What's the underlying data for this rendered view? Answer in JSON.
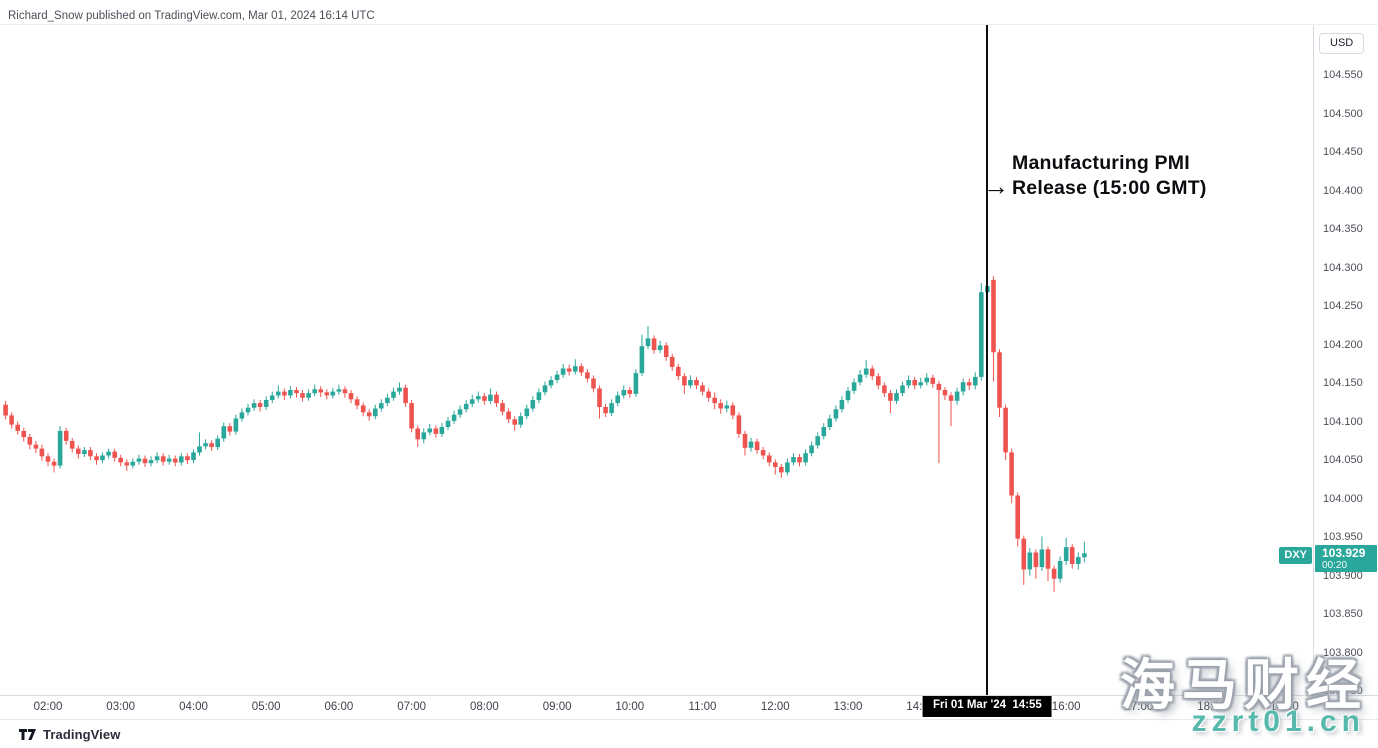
{
  "header": {
    "attribution": "Richard_Snow published on TradingView.com, Mar 01, 2024 16:14 UTC"
  },
  "annotation": {
    "arrow": "→",
    "line1": "Manufacturing PMI",
    "line2": "Release (15:00 GMT)"
  },
  "price_axis": {
    "currency_button": "USD"
  },
  "symbol_label": {
    "symbol": "DXY",
    "price": "103.929",
    "countdown": "00:20"
  },
  "time_axis": {
    "event_badge": "Fri 01 Mar '24  14:55"
  },
  "footer": {
    "brand": "TradingView"
  },
  "watermark": {
    "line1": "海马财经",
    "line2": "zzrt01.cn",
    "color": "#57b9ac"
  },
  "colors": {
    "up": "#2aa79b",
    "down": "#ef5350",
    "event_line": "#0c0d10"
  },
  "chart_data": {
    "type": "candlestick",
    "symbol": "DXY",
    "currency": "USD",
    "interval": "5m",
    "title": "DXY with Manufacturing PMI Release (15:00 GMT) event line at 14:55",
    "start_time": "01:25",
    "interval_minutes": 5,
    "event_time": "14:55",
    "event_annotation": "Manufacturing PMI Release (15:00 GMT)",
    "last_price": 103.929,
    "grid": false,
    "price_at_top": 104.615,
    "price_at_bottom": 103.745,
    "y_ticks": [
      "104.550",
      "104.500",
      "104.450",
      "104.400",
      "104.350",
      "104.300",
      "104.250",
      "104.200",
      "104.150",
      "104.100",
      "104.050",
      "104.000",
      "103.950",
      "103.900",
      "103.850",
      "103.800",
      "103.750"
    ],
    "x_ticks": [
      "02:00",
      "03:00",
      "04:00",
      "05:00",
      "06:00",
      "07:00",
      "08:00",
      "09:00",
      "10:00",
      "11:00",
      "12:00",
      "13:00",
      "14:00",
      "16:00",
      "17:00",
      "18:00",
      "19:00"
    ],
    "candles": [
      [
        104.122,
        104.127,
        104.103,
        104.108
      ],
      [
        104.108,
        104.112,
        104.091,
        104.096
      ],
      [
        104.096,
        104.1,
        104.083,
        104.088
      ],
      [
        104.088,
        104.092,
        104.074,
        104.08
      ],
      [
        104.08,
        104.084,
        104.064,
        104.07
      ],
      [
        104.07,
        104.075,
        104.059,
        104.065
      ],
      [
        104.065,
        104.07,
        104.049,
        104.055
      ],
      [
        104.055,
        104.059,
        104.042,
        104.048
      ],
      [
        104.048,
        104.052,
        104.034,
        104.043
      ],
      [
        104.043,
        104.094,
        104.039,
        104.088
      ],
      [
        104.088,
        104.092,
        104.07,
        104.075
      ],
      [
        104.075,
        104.079,
        104.06,
        104.065
      ],
      [
        104.065,
        104.069,
        104.052,
        104.058
      ],
      [
        104.058,
        104.067,
        104.054,
        104.063
      ],
      [
        104.063,
        104.067,
        104.05,
        104.055
      ],
      [
        104.055,
        104.059,
        104.044,
        104.05
      ],
      [
        104.05,
        104.06,
        104.046,
        104.056
      ],
      [
        104.056,
        104.065,
        104.052,
        104.061
      ],
      [
        104.061,
        104.065,
        104.048,
        104.053
      ],
      [
        104.053,
        104.057,
        104.042,
        104.047
      ],
      [
        104.047,
        104.051,
        104.036,
        104.043
      ],
      [
        104.043,
        104.052,
        104.039,
        104.048
      ],
      [
        104.048,
        104.057,
        104.044,
        104.052
      ],
      [
        104.052,
        104.056,
        104.041,
        104.046
      ],
      [
        104.046,
        104.055,
        104.042,
        104.05
      ],
      [
        104.05,
        104.06,
        104.046,
        104.055
      ],
      [
        104.055,
        104.059,
        104.043,
        104.048
      ],
      [
        104.048,
        104.057,
        104.044,
        104.052
      ],
      [
        104.052,
        104.056,
        104.042,
        104.047
      ],
      [
        104.047,
        104.059,
        104.043,
        104.055
      ],
      [
        104.055,
        104.059,
        104.045,
        104.05
      ],
      [
        104.05,
        104.064,
        104.046,
        104.06
      ],
      [
        104.06,
        104.086,
        104.056,
        104.068
      ],
      [
        104.068,
        104.077,
        104.064,
        104.072
      ],
      [
        104.072,
        104.076,
        104.062,
        104.067
      ],
      [
        104.067,
        104.082,
        104.063,
        104.078
      ],
      [
        104.078,
        104.099,
        104.074,
        104.094
      ],
      [
        104.094,
        104.098,
        104.082,
        104.087
      ],
      [
        104.087,
        104.109,
        104.083,
        104.104
      ],
      [
        104.104,
        104.117,
        104.1,
        104.112
      ],
      [
        104.112,
        104.123,
        104.108,
        104.118
      ],
      [
        104.118,
        104.129,
        104.114,
        104.124
      ],
      [
        104.124,
        104.128,
        104.113,
        104.119
      ],
      [
        104.119,
        104.133,
        104.115,
        104.128
      ],
      [
        104.128,
        104.139,
        104.124,
        104.134
      ],
      [
        104.134,
        104.147,
        104.13,
        104.139
      ],
      [
        104.139,
        104.143,
        104.128,
        104.134
      ],
      [
        104.134,
        104.146,
        104.13,
        104.141
      ],
      [
        104.141,
        104.145,
        104.131,
        104.137
      ],
      [
        104.137,
        104.141,
        104.126,
        104.131
      ],
      [
        104.131,
        104.142,
        104.127,
        104.137
      ],
      [
        104.137,
        104.148,
        104.133,
        104.142
      ],
      [
        104.142,
        104.146,
        104.132,
        104.138
      ],
      [
        104.138,
        104.142,
        104.129,
        104.134
      ],
      [
        104.134,
        104.144,
        104.13,
        104.139
      ],
      [
        104.139,
        104.148,
        104.135,
        104.142
      ],
      [
        104.142,
        104.146,
        104.131,
        104.137
      ],
      [
        104.137,
        104.141,
        104.124,
        104.129
      ],
      [
        104.129,
        104.133,
        104.116,
        104.121
      ],
      [
        104.121,
        104.125,
        104.107,
        104.112
      ],
      [
        104.112,
        104.116,
        104.101,
        104.107
      ],
      [
        104.107,
        104.122,
        104.103,
        104.117
      ],
      [
        104.117,
        104.129,
        104.113,
        104.124
      ],
      [
        104.124,
        104.136,
        104.12,
        104.131
      ],
      [
        104.131,
        104.144,
        104.127,
        104.139
      ],
      [
        104.139,
        104.151,
        104.135,
        104.144
      ],
      [
        104.144,
        104.148,
        104.119,
        104.124
      ],
      [
        104.124,
        104.128,
        104.086,
        104.091
      ],
      [
        104.091,
        104.095,
        104.067,
        104.077
      ],
      [
        104.077,
        104.091,
        104.072,
        104.086
      ],
      [
        104.086,
        104.097,
        104.082,
        104.091
      ],
      [
        104.091,
        104.095,
        104.079,
        104.084
      ],
      [
        104.084,
        104.098,
        104.08,
        104.093
      ],
      [
        104.093,
        104.106,
        104.089,
        104.101
      ],
      [
        104.101,
        104.114,
        104.097,
        104.109
      ],
      [
        104.109,
        104.121,
        104.105,
        104.116
      ],
      [
        104.116,
        104.128,
        104.112,
        104.123
      ],
      [
        104.123,
        104.135,
        104.119,
        104.129
      ],
      [
        104.129,
        104.139,
        104.125,
        104.133
      ],
      [
        104.133,
        104.137,
        104.122,
        104.127
      ],
      [
        104.127,
        104.143,
        104.123,
        104.135
      ],
      [
        104.135,
        104.139,
        104.119,
        104.124
      ],
      [
        104.124,
        104.128,
        104.108,
        104.113
      ],
      [
        104.113,
        104.117,
        104.098,
        104.103
      ],
      [
        104.103,
        104.107,
        104.088,
        104.096
      ],
      [
        104.096,
        104.112,
        104.092,
        104.107
      ],
      [
        104.107,
        104.122,
        104.103,
        104.117
      ],
      [
        104.117,
        104.133,
        104.113,
        104.128
      ],
      [
        104.128,
        104.143,
        104.124,
        104.138
      ],
      [
        104.138,
        104.152,
        104.134,
        104.147
      ],
      [
        104.147,
        104.159,
        104.143,
        104.154
      ],
      [
        104.154,
        104.166,
        104.15,
        104.161
      ],
      [
        104.161,
        104.175,
        104.157,
        104.169
      ],
      [
        104.169,
        104.174,
        104.16,
        104.165
      ],
      [
        104.165,
        104.181,
        104.161,
        104.172
      ],
      [
        104.172,
        104.176,
        104.159,
        104.164
      ],
      [
        104.164,
        104.168,
        104.151,
        104.156
      ],
      [
        104.156,
        104.16,
        104.138,
        104.143
      ],
      [
        104.143,
        104.147,
        104.104,
        104.119
      ],
      [
        104.119,
        104.123,
        104.106,
        104.111
      ],
      [
        104.111,
        104.129,
        104.107,
        104.124
      ],
      [
        104.124,
        104.139,
        104.12,
        104.134
      ],
      [
        104.134,
        104.147,
        104.13,
        104.141
      ],
      [
        104.141,
        104.145,
        104.131,
        104.136
      ],
      [
        104.136,
        104.168,
        104.132,
        104.163
      ],
      [
        104.163,
        104.213,
        104.159,
        104.198
      ],
      [
        104.198,
        104.224,
        104.194,
        104.208
      ],
      [
        104.208,
        104.212,
        104.188,
        104.193
      ],
      [
        104.193,
        104.205,
        104.189,
        104.199
      ],
      [
        104.199,
        104.203,
        104.179,
        104.184
      ],
      [
        104.184,
        104.188,
        104.166,
        104.171
      ],
      [
        104.171,
        104.175,
        104.154,
        104.159
      ],
      [
        104.159,
        104.163,
        104.136,
        104.147
      ],
      [
        104.147,
        104.16,
        104.143,
        104.154
      ],
      [
        104.154,
        104.158,
        104.142,
        104.147
      ],
      [
        104.147,
        104.151,
        104.134,
        104.139
      ],
      [
        104.139,
        104.143,
        104.126,
        104.131
      ],
      [
        104.131,
        104.138,
        104.116,
        104.124
      ],
      [
        104.124,
        104.129,
        104.11,
        104.117
      ],
      [
        104.117,
        104.127,
        104.112,
        104.121
      ],
      [
        104.121,
        104.125,
        104.103,
        104.108
      ],
      [
        104.108,
        104.112,
        104.079,
        104.084
      ],
      [
        104.084,
        104.088,
        104.056,
        104.066
      ],
      [
        104.066,
        104.079,
        104.061,
        104.074
      ],
      [
        104.074,
        104.078,
        104.058,
        104.063
      ],
      [
        104.063,
        104.067,
        104.051,
        104.056
      ],
      [
        104.056,
        104.06,
        104.042,
        104.047
      ],
      [
        104.047,
        104.051,
        104.031,
        104.041
      ],
      [
        104.041,
        104.045,
        104.027,
        104.034
      ],
      [
        104.034,
        104.052,
        104.03,
        104.047
      ],
      [
        104.047,
        104.059,
        104.043,
        104.054
      ],
      [
        104.054,
        104.058,
        104.042,
        104.047
      ],
      [
        104.047,
        104.064,
        104.043,
        104.059
      ],
      [
        104.059,
        104.074,
        104.055,
        104.069
      ],
      [
        104.069,
        104.086,
        104.065,
        104.081
      ],
      [
        104.081,
        104.098,
        104.077,
        104.093
      ],
      [
        104.093,
        104.109,
        104.089,
        104.104
      ],
      [
        104.104,
        104.121,
        104.1,
        104.116
      ],
      [
        104.116,
        104.133,
        104.112,
        104.128
      ],
      [
        104.128,
        104.145,
        104.124,
        104.14
      ],
      [
        104.14,
        104.156,
        104.136,
        104.151
      ],
      [
        104.151,
        104.167,
        104.147,
        104.161
      ],
      [
        104.161,
        104.18,
        104.157,
        104.169
      ],
      [
        104.169,
        104.173,
        104.154,
        104.159
      ],
      [
        104.159,
        104.163,
        104.142,
        104.147
      ],
      [
        104.147,
        104.151,
        104.132,
        104.137
      ],
      [
        104.137,
        104.141,
        104.111,
        104.127
      ],
      [
        104.127,
        104.142,
        104.123,
        104.137
      ],
      [
        104.137,
        104.152,
        104.133,
        104.147
      ],
      [
        104.147,
        104.16,
        104.143,
        104.154
      ],
      [
        104.154,
        104.158,
        104.142,
        104.147
      ],
      [
        104.147,
        104.157,
        104.143,
        104.151
      ],
      [
        104.151,
        104.163,
        104.147,
        104.157
      ],
      [
        104.157,
        104.161,
        104.144,
        104.149
      ],
      [
        104.149,
        104.153,
        104.046,
        104.141
      ],
      [
        104.141,
        104.145,
        104.128,
        104.134
      ],
      [
        104.134,
        104.138,
        104.094,
        104.127
      ],
      [
        104.127,
        104.144,
        104.122,
        104.139
      ],
      [
        104.139,
        104.156,
        104.134,
        104.151
      ],
      [
        104.151,
        104.156,
        104.141,
        104.147
      ],
      [
        104.147,
        104.164,
        104.142,
        104.158
      ],
      [
        104.158,
        104.28,
        104.153,
        104.268
      ],
      [
        104.268,
        104.292,
        104.262,
        104.276
      ],
      [
        104.284,
        104.289,
        104.152,
        104.19
      ],
      [
        104.19,
        104.194,
        104.106,
        104.118
      ],
      [
        104.118,
        104.122,
        104.05,
        104.06
      ],
      [
        104.06,
        104.065,
        103.994,
        104.004
      ],
      [
        104.004,
        104.008,
        103.938,
        103.948
      ],
      [
        103.948,
        103.952,
        103.888,
        103.908
      ],
      [
        103.908,
        103.936,
        103.9,
        103.93
      ],
      [
        103.93,
        103.934,
        103.896,
        103.911
      ],
      [
        103.911,
        103.951,
        103.906,
        103.934
      ],
      [
        103.934,
        103.938,
        103.893,
        103.909
      ],
      [
        103.909,
        103.913,
        103.879,
        103.896
      ],
      [
        103.896,
        103.925,
        103.891,
        103.919
      ],
      [
        103.919,
        103.949,
        103.914,
        103.937
      ],
      [
        103.937,
        103.941,
        103.909,
        103.915
      ],
      [
        103.915,
        103.93,
        103.908,
        103.924
      ],
      [
        103.924,
        103.944,
        103.917,
        103.929
      ]
    ]
  }
}
